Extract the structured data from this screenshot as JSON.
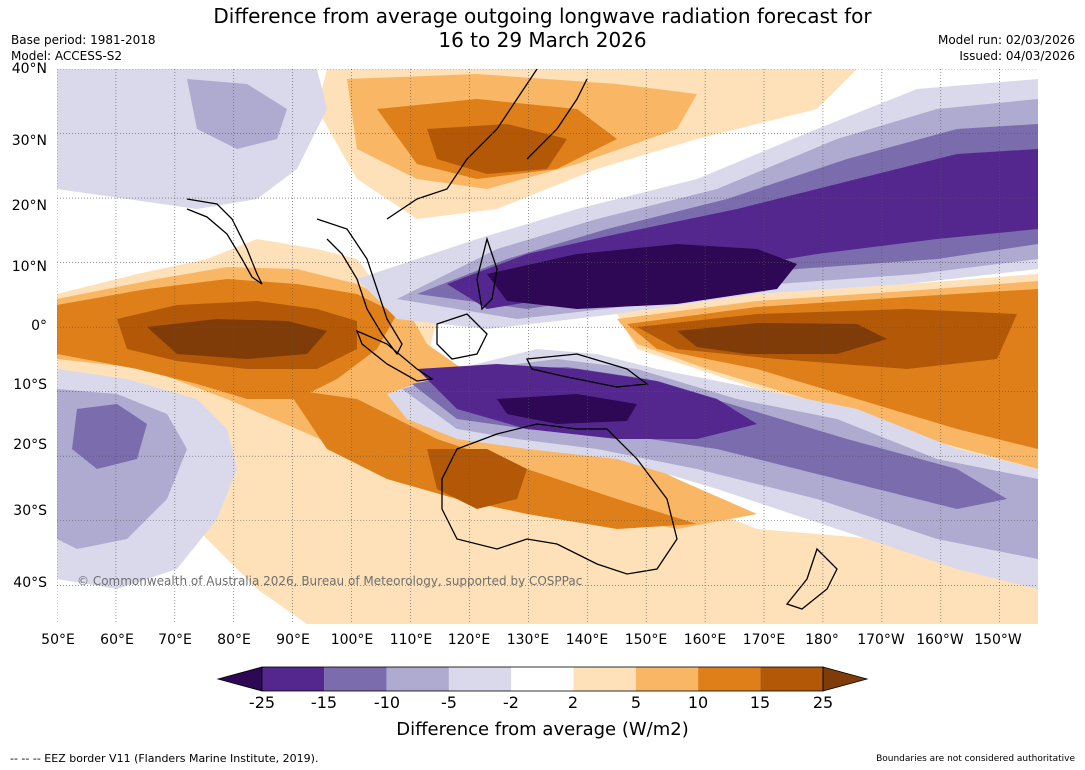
{
  "header": {
    "title_line1": "Difference from average outgoing longwave radiation forecast for",
    "title_line2": "16 to 29 March 2026",
    "base_period": "Base period: 1981-2018",
    "model": "Model: ACCESS-S2",
    "model_run": "Model run: 02/03/2026",
    "issued": "Issued: 04/03/2026"
  },
  "map": {
    "copyright": "© Commonwealth of Australia 2026, Bureau of Meteorology, supported by COSPPac",
    "lat_labels": [
      "40°N",
      "30°N",
      "20°N",
      "10°N",
      "0°",
      "10°S",
      "20°S",
      "30°S",
      "40°S"
    ],
    "lon_labels": [
      "50°E",
      "60°E",
      "70°E",
      "80°E",
      "90°E",
      "100°E",
      "110°E",
      "120°E",
      "130°E",
      "140°E",
      "150°E",
      "160°E",
      "170°E",
      "180°",
      "170°W",
      "160°W",
      "150°W"
    ],
    "extent": {
      "lon_min": 50,
      "lon_max": 216.5,
      "lat_min": -46,
      "lat_max": 40
    }
  },
  "colorbar": {
    "levels": [
      "-25",
      "-15",
      "-10",
      "-5",
      "-2",
      "2",
      "5",
      "10",
      "15",
      "25"
    ],
    "colors": [
      "#2e0854",
      "#54278f",
      "#7b6cad",
      "#aeaad0",
      "#d9d9eb",
      "#ffffff",
      "#fee1b8",
      "#f9b765",
      "#df7f1a",
      "#b35806",
      "#7f3b08"
    ],
    "title": "Difference from average (W/m2)"
  },
  "footer": {
    "eez_note": "--  --  -- EEZ border V11 (Flanders Marine Institute, 2019).",
    "boundaries_note": "Boundaries are not considered authoritative"
  }
}
